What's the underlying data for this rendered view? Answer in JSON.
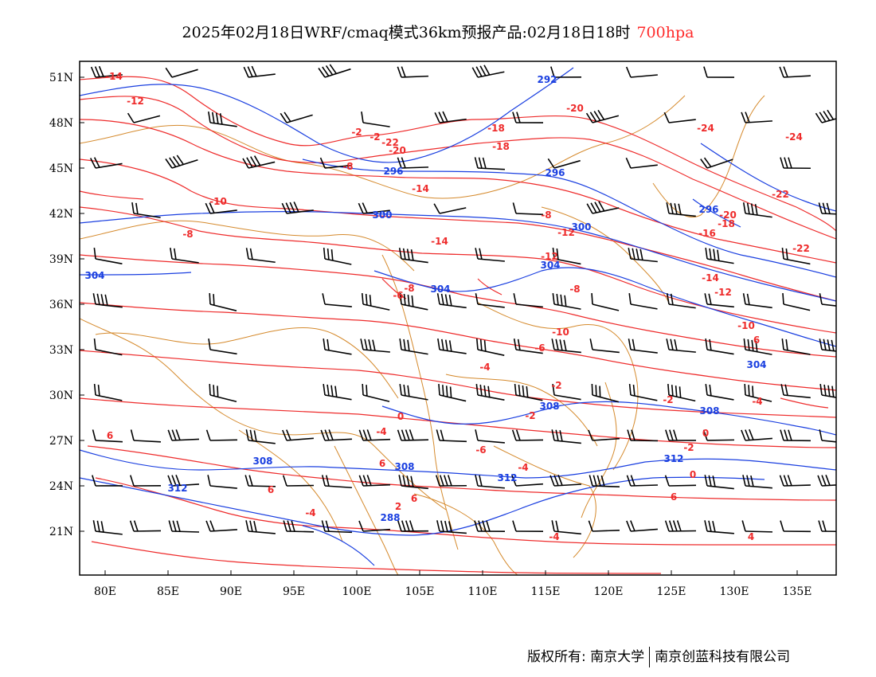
{
  "title": {
    "main": "2025年02月18日WRF/cmaq模式36km预报产品:02月18日18时",
    "level": "700hpa"
  },
  "map": {
    "lat_labels": [
      "51N",
      "48N",
      "45N",
      "42N",
      "39N",
      "36N",
      "33N",
      "30N",
      "27N",
      "24N",
      "21N"
    ],
    "lon_labels": [
      "80E",
      "85E",
      "90E",
      "95E",
      "100E",
      "105E",
      "110E",
      "115E",
      "120E",
      "125E",
      "130E",
      "135E"
    ],
    "temp_labels": [
      "-14",
      "-12",
      "-2",
      "-2",
      "-22",
      "-20",
      "-18",
      "-18",
      "-20",
      "-24",
      "-24",
      "-8",
      "-14",
      "-10",
      "-8",
      "-12",
      "-14",
      "-12",
      "-10",
      "-16",
      "-18",
      "-20",
      "-22",
      "-22",
      "-8",
      "-8",
      "-6",
      "-8",
      "-14",
      "-12",
      "-10",
      "-6",
      "-4",
      "-2",
      "0",
      "-4",
      "-6",
      "-4",
      "-2",
      "-2",
      "-4",
      "0",
      "-2",
      "0",
      "2",
      "-4",
      "-4",
      "4",
      "6",
      "6",
      "6",
      "6",
      "6",
      "6"
    ],
    "height_labels": [
      "292",
      "296",
      "296",
      "300",
      "300",
      "304",
      "304",
      "304",
      "304",
      "308",
      "308",
      "308",
      "308",
      "312",
      "312",
      "312",
      "288",
      "296"
    ],
    "colors": {
      "temperature": "#ee2b2b",
      "height": "#1a3fe0",
      "border": "#d58a2d",
      "wind": "#000000",
      "level": "#ff2a2a"
    }
  },
  "credit": {
    "rights": "版权所有: 南京大学",
    "company": "南京创蓝科技有限公司"
  }
}
